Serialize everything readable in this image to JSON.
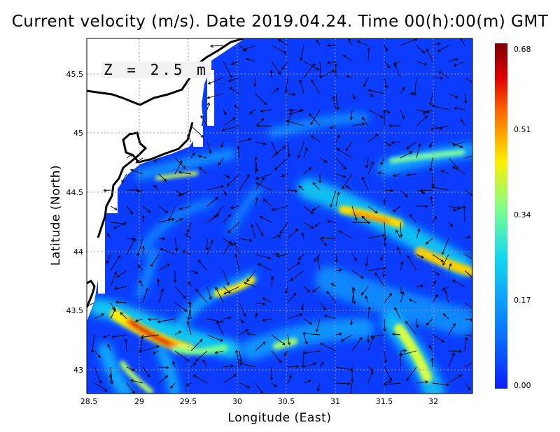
{
  "title": "Current velocity (m/s). Date 2019.04.24. Time 00(h):00(m) GMT",
  "depth_label": "Z = 2.5 m",
  "chart_data": {
    "type": "heatmap",
    "xlabel": "Longitude (East)",
    "ylabel": "Latitude (North)",
    "xlim": [
      28.5,
      32.4
    ],
    "ylim": [
      42.8,
      45.8
    ],
    "x_ticks": [
      "28.5",
      "29",
      "29.5",
      "30",
      "30.5",
      "31",
      "31.5",
      "32"
    ],
    "y_ticks": [
      "43",
      "43.5",
      "44",
      "44.5",
      "45",
      "45.5"
    ],
    "grid": true,
    "colorbar": {
      "min": 0.0,
      "max": 0.68,
      "tick_labels": [
        "0.68",
        "0.51",
        "0.34",
        "0.17",
        "0.00"
      ],
      "colors": [
        "#0a1fff",
        "#0b7cff",
        "#12d8f0",
        "#7dff8c",
        "#ffee00",
        "#ff6a00",
        "#e00000",
        "#7a0000"
      ]
    },
    "high_speed_features": [
      {
        "lon": 29.2,
        "lat": 43.3,
        "speed": 0.66
      },
      {
        "lon": 29.6,
        "lat": 43.2,
        "speed": 0.45
      },
      {
        "lon": 31.4,
        "lat": 44.3,
        "speed": 0.55
      },
      {
        "lon": 32.1,
        "lat": 43.9,
        "speed": 0.5
      },
      {
        "lon": 31.8,
        "lat": 43.1,
        "speed": 0.5
      },
      {
        "lon": 30.05,
        "lat": 43.7,
        "speed": 0.45
      },
      {
        "lon": 29.0,
        "lat": 43.05,
        "speed": 0.35
      },
      {
        "lon": 29.4,
        "lat": 44.55,
        "speed": 0.3
      }
    ]
  }
}
